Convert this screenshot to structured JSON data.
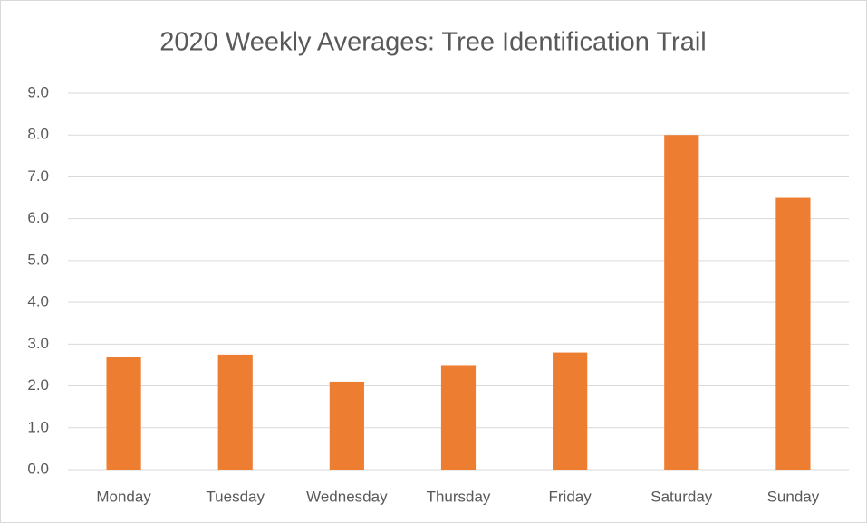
{
  "chart_data": {
    "type": "bar",
    "title": "2020 Weekly Averages: Tree Identification Trail",
    "categories": [
      "Monday",
      "Tuesday",
      "Wednesday",
      "Thursday",
      "Friday",
      "Saturday",
      "Sunday"
    ],
    "values": [
      2.7,
      2.75,
      2.1,
      2.5,
      2.8,
      8.0,
      6.5
    ],
    "color": "#ed7d31",
    "ylim": [
      0,
      9
    ],
    "yticks": [
      {
        "value": 0,
        "label": "0.0"
      },
      {
        "value": 1,
        "label": "1.0"
      },
      {
        "value": 2,
        "label": "2.0"
      },
      {
        "value": 3,
        "label": "3.0"
      },
      {
        "value": 4,
        "label": "4.0"
      },
      {
        "value": 5,
        "label": "5.0"
      },
      {
        "value": 6,
        "label": "6.0"
      },
      {
        "value": 7,
        "label": "7.0"
      },
      {
        "value": 8,
        "label": "8.0"
      },
      {
        "value": 9,
        "label": "9.0"
      }
    ],
    "grid": true
  }
}
